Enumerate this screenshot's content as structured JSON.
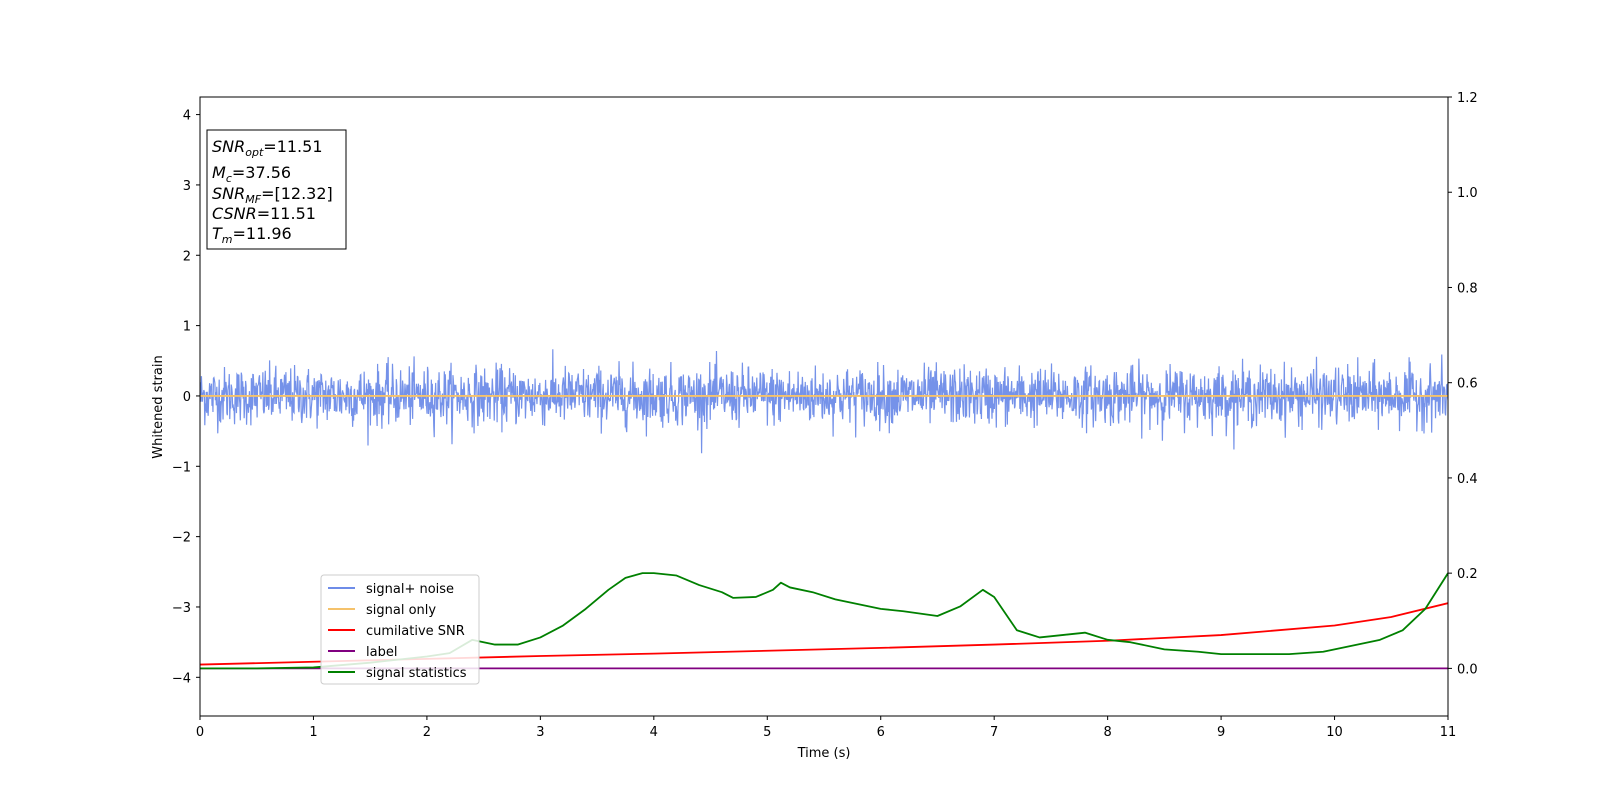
{
  "chart_data": {
    "type": "line",
    "title": "",
    "xlabel": "Time (s)",
    "ylabel": "Whitened strain",
    "xlim": [
      0,
      11
    ],
    "ylim_left": [
      -4.55,
      4.25
    ],
    "ylim_right": [
      -0.1,
      1.2
    ],
    "x_ticks": [
      0,
      1,
      2,
      3,
      4,
      5,
      6,
      7,
      8,
      9,
      10,
      11
    ],
    "y_left_ticks": [
      -4,
      -3,
      -2,
      -1,
      0,
      1,
      2,
      3,
      4
    ],
    "y_left_tick_labels": [
      "−4",
      "−3",
      "−2",
      "−1",
      "0",
      "1",
      "2",
      "3",
      "4"
    ],
    "y_right_ticks": [
      0.0,
      0.2,
      0.4,
      0.6,
      0.8,
      1.0,
      1.2
    ],
    "y_right_tick_labels": [
      "0.0",
      "0.2",
      "0.4",
      "0.6",
      "0.8",
      "1.0",
      "1.2"
    ],
    "grid": false,
    "legend_position": "lower-left",
    "series": [
      {
        "name": "signal+ noise",
        "color": "#6e8ce8",
        "axis": "left",
        "kind": "noise",
        "center": 0,
        "typical_amplitude": 0.45,
        "peak_amplitude": 1.1
      },
      {
        "name": "signal only",
        "color": "#f5c26b",
        "axis": "left",
        "kind": "line",
        "x": [
          0,
          11
        ],
        "y": [
          0,
          0
        ]
      },
      {
        "name": "cumilative SNR",
        "color": "#ff0000",
        "axis": "right",
        "kind": "line",
        "x": [
          0,
          1,
          2,
          3,
          4,
          5,
          6,
          7,
          8,
          9,
          10,
          10.5,
          11
        ],
        "y": [
          0.008,
          0.014,
          0.02,
          0.026,
          0.031,
          0.037,
          0.043,
          0.05,
          0.058,
          0.07,
          0.09,
          0.108,
          0.137
        ]
      },
      {
        "name": "label",
        "color": "#800080",
        "axis": "right",
        "kind": "line",
        "x": [
          0,
          11
        ],
        "y": [
          0,
          0
        ]
      },
      {
        "name": "signal statistics",
        "color": "#008000",
        "axis": "right",
        "kind": "line",
        "x": [
          0,
          0.5,
          1.0,
          1.5,
          2.0,
          2.2,
          2.4,
          2.6,
          2.8,
          3.0,
          3.2,
          3.4,
          3.6,
          3.75,
          3.9,
          4.0,
          4.2,
          4.4,
          4.6,
          4.7,
          4.9,
          5.05,
          5.12,
          5.2,
          5.4,
          5.6,
          5.8,
          6.0,
          6.2,
          6.5,
          6.7,
          6.9,
          7.0,
          7.2,
          7.4,
          7.6,
          7.8,
          8.0,
          8.2,
          8.5,
          8.8,
          9.0,
          9.3,
          9.6,
          9.9,
          10.2,
          10.4,
          10.6,
          10.8,
          11.0
        ],
        "y": [
          0.0,
          0.0,
          0.002,
          0.012,
          0.025,
          0.032,
          0.06,
          0.05,
          0.05,
          0.065,
          0.09,
          0.125,
          0.165,
          0.19,
          0.2,
          0.2,
          0.195,
          0.175,
          0.16,
          0.148,
          0.15,
          0.165,
          0.18,
          0.17,
          0.16,
          0.145,
          0.135,
          0.125,
          0.12,
          0.11,
          0.13,
          0.165,
          0.15,
          0.08,
          0.065,
          0.07,
          0.075,
          0.06,
          0.055,
          0.04,
          0.035,
          0.03,
          0.03,
          0.03,
          0.035,
          0.05,
          0.06,
          0.08,
          0.125,
          0.2
        ]
      }
    ],
    "annotations": {
      "snr_opt": {
        "symbol": "SNR",
        "sub": "opt",
        "value": "=11.51"
      },
      "mc": {
        "symbol": "M",
        "sub": "c",
        "value": "=37.56"
      },
      "snr_mf": {
        "symbol": "SNR",
        "sub": "MF",
        "value": "=[12.32]"
      },
      "csnr": {
        "symbol": "CSNR",
        "sub": "",
        "value": "=11.51"
      },
      "tm": {
        "symbol": "T",
        "sub": "m",
        "value": "=11.96"
      }
    }
  }
}
